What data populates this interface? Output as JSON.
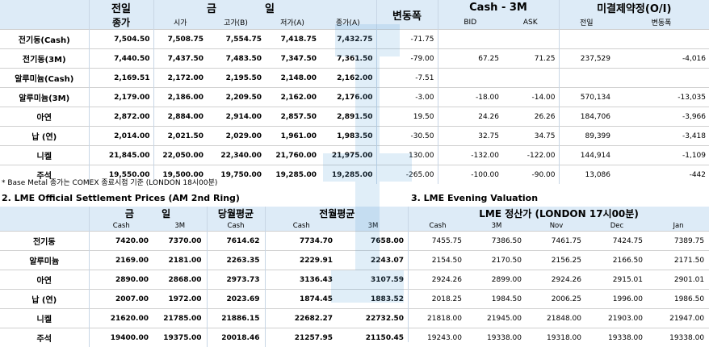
{
  "top": {
    "headers1": [
      "전일",
      "금",
      "일",
      "변동폭",
      "Cash - 3M",
      "미결제약정(O/I)"
    ],
    "headers1_sub": "종가",
    "headers2": [
      "시가",
      "고가(B)",
      "저가(A)",
      "종가(A)",
      "BID",
      "ASK",
      "전일",
      "변동폭"
    ],
    "rows": [
      {
        "label": "전기동(Cash)",
        "vals": [
          "7,504.50",
          "7,508.75",
          "7,554.75",
          "7,418.75",
          "7,432.75",
          "-71.75",
          "",
          "",
          "",
          ""
        ]
      },
      {
        "label": "전기동(3M)",
        "vals": [
          "7,440.50",
          "7,437.50",
          "7,483.50",
          "7,347.50",
          "7,361.50",
          "-79.00",
          "67.25",
          "71.25",
          "237,529",
          "-4,016"
        ]
      },
      {
        "label": "알루미늄(Cash)",
        "vals": [
          "2,169.51",
          "2,172.00",
          "2,195.50",
          "2,148.00",
          "2,162.00",
          "-7.51",
          "",
          "",
          "",
          ""
        ]
      },
      {
        "label": "알루미늄(3M)",
        "vals": [
          "2,179.00",
          "2,186.00",
          "2,209.50",
          "2,162.00",
          "2,176.00",
          "-3.00",
          "-18.00",
          "-14.00",
          "570,134",
          "-13,035"
        ]
      },
      {
        "label": "아연",
        "vals": [
          "2,872.00",
          "2,884.00",
          "2,914.00",
          "2,857.50",
          "2,891.50",
          "19.50",
          "24.26",
          "26.26",
          "184,706",
          "-3,966"
        ]
      },
      {
        "label": "납 (연)",
        "vals": [
          "2,014.00",
          "2,021.50",
          "2,029.00",
          "1,961.00",
          "1,983.50",
          "-30.50",
          "32.75",
          "34.75",
          "89,399",
          "-3,418"
        ]
      },
      {
        "label": "니켈",
        "vals": [
          "21,845.00",
          "22,050.00",
          "22,340.00",
          "21,760.00",
          "21,975.00",
          "130.00",
          "-132.00",
          "-122.00",
          "144,914",
          "-1,109"
        ]
      },
      {
        "label": "주석",
        "vals": [
          "19,550.00",
          "19,500.00",
          "19,750.00",
          "19,285.00",
          "19,285.00",
          "-265.00",
          "-100.00",
          "-90.00",
          "13,086",
          "-442"
        ]
      }
    ]
  },
  "note": "* Base Metal 종가는 COMEX 종료시점 기준 (LONDON 18시00분)",
  "section2": {
    "title": "2. LME Official Settlement Prices (AM 2nd Ring)",
    "headers1": [
      "금 일",
      "당월평균",
      "전월평균"
    ],
    "headers2": [
      "Cash",
      "3M",
      "Cash",
      "Cash",
      "3M"
    ],
    "rows": [
      {
        "label": "전기동",
        "vals": [
          "7420.00",
          "7370.00",
          "7614.62",
          "7734.70",
          "7658.00"
        ]
      },
      {
        "label": "알루미늄",
        "vals": [
          "2169.00",
          "2181.00",
          "2263.35",
          "2229.91",
          "2243.07"
        ]
      },
      {
        "label": "아연",
        "vals": [
          "2890.00",
          "2868.00",
          "2973.73",
          "3136.43",
          "3107.59"
        ]
      },
      {
        "label": "납 (연)",
        "vals": [
          "2007.00",
          "1972.00",
          "2023.69",
          "1874.45",
          "1883.52"
        ]
      },
      {
        "label": "니켈",
        "vals": [
          "21620.00",
          "21785.00",
          "21886.15",
          "22682.27",
          "22732.50"
        ]
      },
      {
        "label": "주석",
        "vals": [
          "19400.00",
          "19375.00",
          "20018.46",
          "21257.95",
          "21150.45"
        ]
      }
    ]
  },
  "section3": {
    "title": "3. LME Evening Valuation",
    "header1": "LME 정산가 (LONDON 17시00분)",
    "headers2": [
      "Cash",
      "3M",
      "Nov",
      "Dec",
      "Jan"
    ],
    "rows": [
      {
        "vals": [
          "7455.75",
          "7386.50",
          "7461.75",
          "7424.75",
          "7389.75"
        ]
      },
      {
        "vals": [
          "2154.50",
          "2170.50",
          "2156.25",
          "2166.50",
          "2171.50"
        ]
      },
      {
        "vals": [
          "2924.26",
          "2899.00",
          "2924.26",
          "2915.01",
          "2901.01"
        ]
      },
      {
        "vals": [
          "2018.25",
          "1984.50",
          "2006.25",
          "1996.00",
          "1986.50"
        ]
      },
      {
        "vals": [
          "21818.00",
          "21945.00",
          "21848.00",
          "21903.00",
          "21947.00"
        ]
      },
      {
        "vals": [
          "19243.00",
          "19338.00",
          "19318.00",
          "19338.00",
          "19338.00"
        ]
      }
    ]
  },
  "colors": {
    "header_bg": "#ddebf7",
    "watermark": "#5ba3d9"
  },
  "watermark_icon": "watermark-logo-icon"
}
